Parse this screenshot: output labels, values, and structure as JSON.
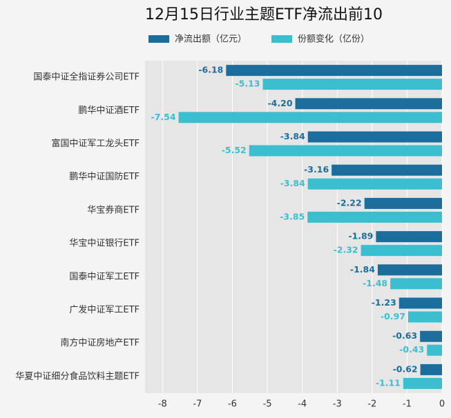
{
  "chart_data": {
    "type": "barh",
    "title": "12月15日行业主题ETF净流出前10",
    "categories": [
      "国泰中证全指证券公司ETF",
      "鹏华中证酒ETF",
      "富国中证军工龙头ETF",
      "鹏华中证国防ETF",
      "华宝券商ETF",
      "华宝中证银行ETF",
      "国泰中证军工ETF",
      "广发中证军工ETF",
      "南方中证房地产ETF",
      "华夏中证细分食品饮料主题ETF"
    ],
    "series": [
      {
        "name": "净流出额（亿元）",
        "color": "#1b6d9c",
        "values": [
          -6.18,
          -4.2,
          -3.84,
          -3.16,
          -2.22,
          -1.89,
          -1.84,
          -1.23,
          -0.63,
          -0.62
        ],
        "value_labels": [
          "-6.18",
          "-4.20",
          "-3.84",
          "-3.16",
          "-2.22",
          "-1.89",
          "-1.84",
          "-1.23",
          "-0.63",
          "-0.62"
        ]
      },
      {
        "name": "份额变化（亿份）",
        "color": "#3bbfd0",
        "values": [
          -5.13,
          -7.54,
          -5.52,
          -3.84,
          -3.85,
          -2.32,
          -1.48,
          -0.97,
          -0.43,
          -1.11
        ],
        "value_labels": [
          "-5.13",
          "-7.54",
          "-5.52",
          "-3.84",
          "-3.85",
          "-2.32",
          "-1.48",
          "-0.97",
          "-0.43",
          "-1.11"
        ]
      }
    ],
    "xlim": [
      -8.5,
      0
    ],
    "xticks": [
      -8,
      -7,
      -6,
      -5,
      -4,
      -3,
      -2,
      -1,
      0
    ],
    "grid": true,
    "legend": "top"
  }
}
